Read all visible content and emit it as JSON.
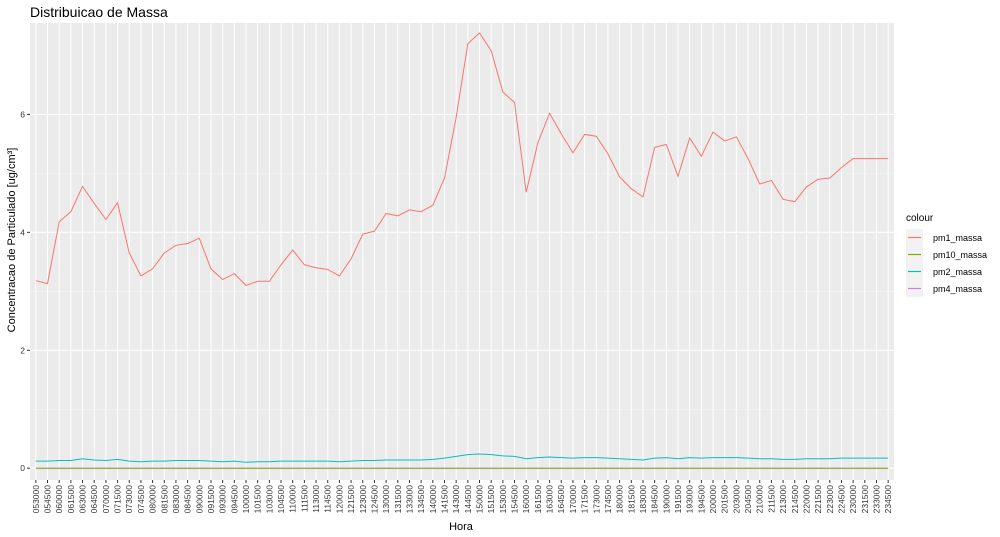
{
  "chart_data": {
    "type": "line",
    "title": "Distribuicao de Massa",
    "xlabel": "Hora",
    "ylabel": "Concentracao de Particulado [ug/cm³]",
    "ylim": [
      -0.2,
      7.55
    ],
    "yticks": [
      0,
      2,
      4,
      6
    ],
    "grid": true,
    "legend_position": "right",
    "legend_title": "colour",
    "categories": [
      "053000",
      "054500",
      "060000",
      "061500",
      "063000",
      "064500",
      "070000",
      "071500",
      "073000",
      "074500",
      "080000",
      "081500",
      "083000",
      "084500",
      "090000",
      "091500",
      "093000",
      "094500",
      "100000",
      "101500",
      "103000",
      "104500",
      "110000",
      "111500",
      "113000",
      "114500",
      "120000",
      "121500",
      "123000",
      "124500",
      "130000",
      "131500",
      "133000",
      "134500",
      "140000",
      "141500",
      "143000",
      "144500",
      "150000",
      "151500",
      "153000",
      "154500",
      "160000",
      "161500",
      "163000",
      "164500",
      "170000",
      "171500",
      "173000",
      "174500",
      "180000",
      "181500",
      "183000",
      "184500",
      "190000",
      "191500",
      "193000",
      "194500",
      "200000",
      "201500",
      "203000",
      "204500",
      "210000",
      "211500",
      "213000",
      "214500",
      "220000",
      "221500",
      "223000",
      "224500",
      "230000",
      "231500",
      "233000",
      "234500"
    ],
    "series": [
      {
        "name": "pm1_massa",
        "color": "#F8766D",
        "values": [
          3.18,
          3.13,
          4.18,
          4.35,
          4.78,
          4.49,
          4.22,
          4.5,
          3.65,
          3.26,
          3.38,
          3.65,
          3.78,
          3.81,
          3.9,
          3.38,
          3.2,
          3.3,
          3.1,
          3.17,
          3.17,
          3.45,
          3.7,
          3.45,
          3.4,
          3.37,
          3.26,
          3.55,
          3.97,
          4.02,
          4.32,
          4.28,
          4.38,
          4.35,
          4.46,
          4.92,
          5.95,
          7.2,
          7.38,
          7.08,
          6.38,
          6.2,
          4.68,
          5.52,
          6.02,
          5.67,
          5.35,
          5.66,
          5.63,
          5.33,
          4.94,
          4.74,
          4.6,
          5.44,
          5.49,
          4.95,
          5.6,
          5.29,
          5.7,
          5.55,
          5.62,
          5.25,
          4.82,
          4.88,
          4.56,
          4.52,
          4.77,
          4.9,
          4.92,
          5.1,
          5.25,
          5.25,
          5.25,
          5.25
        ]
      },
      {
        "name": "pm10_massa",
        "color": "#7CAE00",
        "values": [
          0,
          0,
          0,
          0,
          0,
          0,
          0,
          0,
          0,
          0,
          0,
          0,
          0,
          0,
          0,
          0,
          0,
          0,
          0,
          0,
          0,
          0,
          0,
          0,
          0,
          0,
          0,
          0,
          0,
          0,
          0,
          0,
          0,
          0,
          0,
          0,
          0,
          0,
          0,
          0,
          0,
          0,
          0,
          0,
          0,
          0,
          0,
          0,
          0,
          0,
          0,
          0,
          0,
          0,
          0,
          0,
          0,
          0,
          0,
          0,
          0,
          0,
          0,
          0,
          0,
          0,
          0,
          0,
          0,
          0,
          0,
          0,
          0,
          0
        ]
      },
      {
        "name": "pm2_massa",
        "color": "#00BFC4",
        "values": [
          0.12,
          0.12,
          0.13,
          0.13,
          0.16,
          0.14,
          0.13,
          0.15,
          0.12,
          0.11,
          0.12,
          0.12,
          0.13,
          0.13,
          0.13,
          0.12,
          0.11,
          0.12,
          0.1,
          0.11,
          0.11,
          0.12,
          0.12,
          0.12,
          0.12,
          0.12,
          0.11,
          0.12,
          0.13,
          0.13,
          0.14,
          0.14,
          0.14,
          0.14,
          0.15,
          0.17,
          0.2,
          0.23,
          0.24,
          0.23,
          0.21,
          0.2,
          0.16,
          0.18,
          0.19,
          0.18,
          0.17,
          0.18,
          0.18,
          0.17,
          0.16,
          0.15,
          0.14,
          0.17,
          0.18,
          0.16,
          0.18,
          0.17,
          0.18,
          0.18,
          0.18,
          0.17,
          0.16,
          0.16,
          0.15,
          0.15,
          0.16,
          0.16,
          0.16,
          0.17,
          0.17,
          0.17,
          0.17,
          0.17
        ]
      },
      {
        "name": "pm4_massa",
        "color": "#C77CFF",
        "values": [
          0,
          0,
          0,
          0,
          0,
          0,
          0,
          0,
          0,
          0,
          0,
          0,
          0,
          0,
          0,
          0,
          0,
          0,
          0,
          0,
          0,
          0,
          0,
          0,
          0,
          0,
          0,
          0,
          0,
          0,
          0,
          0,
          0,
          0,
          0,
          0,
          0,
          0,
          0,
          0,
          0,
          0,
          0,
          0,
          0,
          0,
          0,
          0,
          0,
          0,
          0,
          0,
          0,
          0,
          0,
          0,
          0,
          0,
          0,
          0,
          0,
          0,
          0,
          0,
          0,
          0,
          0,
          0,
          0,
          0,
          0,
          0,
          0,
          0
        ]
      }
    ]
  }
}
